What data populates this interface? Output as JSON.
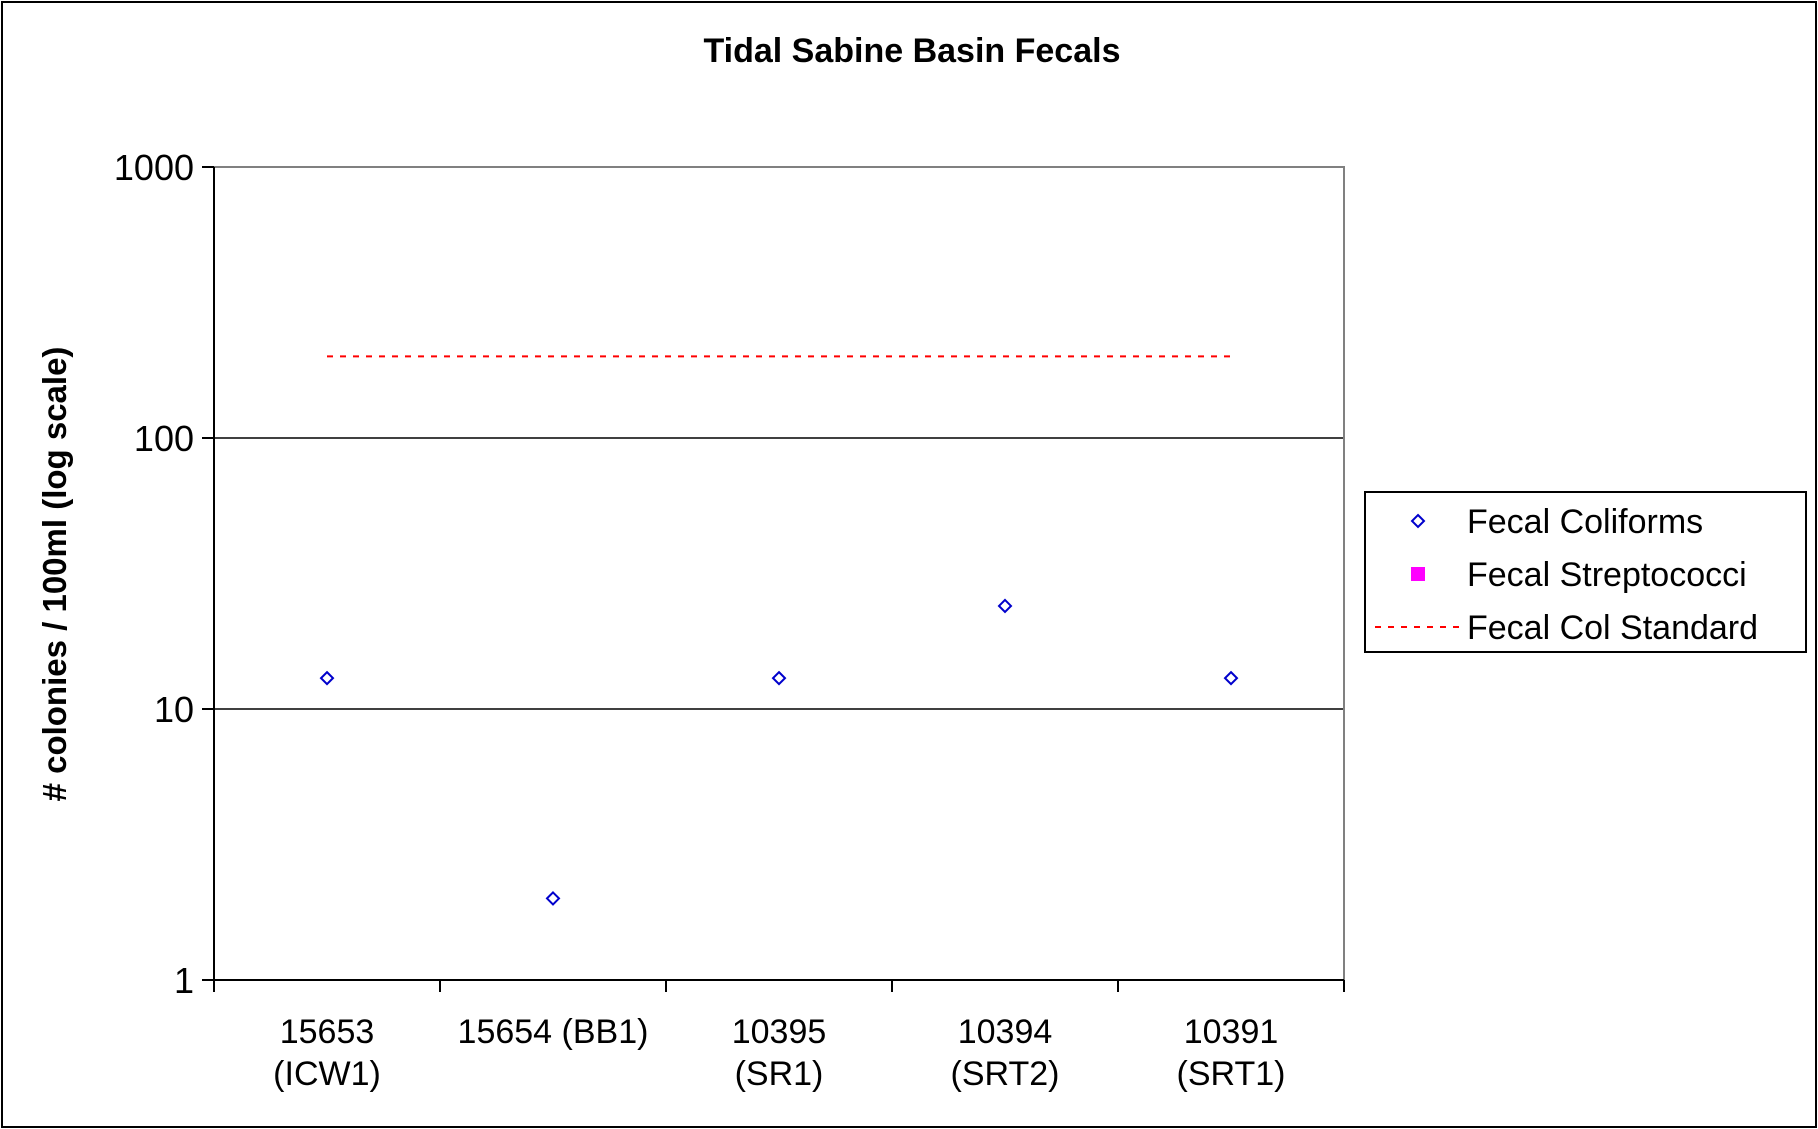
{
  "chart_data": {
    "type": "scatter",
    "title": "Tidal Sabine Basin Fecals",
    "ylabel": "# colonies / 100ml (log scale)",
    "xlabel": "",
    "y_scale": "log",
    "ylim": [
      1,
      1000
    ],
    "y_ticks": [
      "1",
      "10",
      "100",
      "1000"
    ],
    "grid": "horizontal major gridlines",
    "legend_position": "right",
    "categories": [
      [
        "15653",
        "(ICW1)"
      ],
      [
        "15654 (BB1)"
      ],
      [
        "10395",
        "(SR1)"
      ],
      [
        "10394",
        "(SRT2)"
      ],
      [
        "10391",
        "(SRT1)"
      ]
    ],
    "series": [
      {
        "name": "Fecal Coliforms",
        "marker": "diamond-open",
        "color": "#0000cc",
        "values": [
          13,
          2,
          13,
          24,
          13
        ]
      },
      {
        "name": "Fecal Streptococci",
        "marker": "square-filled",
        "color": "#ff00ff",
        "values": [
          null,
          null,
          null,
          null,
          null
        ]
      },
      {
        "name": "Fecal Col Standard",
        "marker": "dashed-line",
        "color": "#ff0000",
        "values": [
          200,
          200,
          200,
          200,
          200
        ]
      }
    ]
  }
}
